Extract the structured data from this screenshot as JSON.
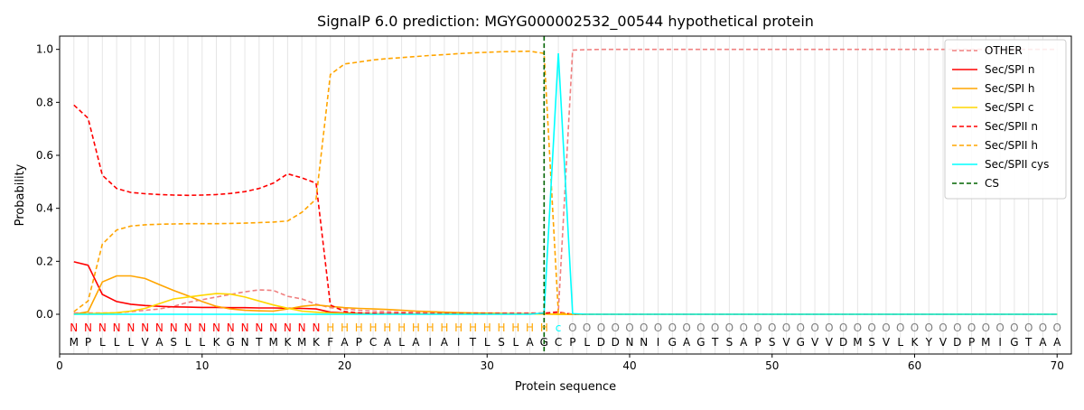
{
  "chart_data": {
    "type": "line",
    "title": "SignalP 6.0 prediction: MGYG000002532_00544 hypothetical protein",
    "xlabel": "Protein sequence",
    "ylabel": "Probability",
    "xlim": [
      0,
      71
    ],
    "ylim": [
      -0.15,
      1.05
    ],
    "xticks": [
      0,
      10,
      20,
      30,
      40,
      50,
      60,
      70
    ],
    "yticks": [
      0.0,
      0.2,
      0.4,
      0.6,
      0.8,
      1.0
    ],
    "grid": "vertical lines at every residue",
    "legend_position": "top-right",
    "sequence": [
      "M",
      "P",
      "L",
      "L",
      "L",
      "V",
      "A",
      "S",
      "L",
      "L",
      "K",
      "G",
      "N",
      "T",
      "M",
      "K",
      "M",
      "K",
      "F",
      "A",
      "P",
      "C",
      "A",
      "L",
      "A",
      "I",
      "A",
      "I",
      "T",
      "L",
      "S",
      "L",
      "A",
      "G",
      "C",
      "P",
      "L",
      "D",
      "D",
      "N",
      "N",
      "I",
      "G",
      "A",
      "G",
      "T",
      "S",
      "A",
      "P",
      "S",
      "V",
      "G",
      "V",
      "V",
      "D",
      "M",
      "S",
      "V",
      "L",
      "K",
      "Y",
      "V",
      "D",
      "P",
      "M",
      "I",
      "G",
      "T",
      "A",
      "A"
    ],
    "labels": [
      "N",
      "N",
      "N",
      "N",
      "N",
      "N",
      "N",
      "N",
      "N",
      "N",
      "N",
      "N",
      "N",
      "N",
      "N",
      "N",
      "N",
      "N",
      "H",
      "H",
      "H",
      "H",
      "H",
      "H",
      "H",
      "H",
      "H",
      "H",
      "H",
      "H",
      "H",
      "H",
      "H",
      "H",
      "c",
      "O",
      "O",
      "O",
      "O",
      "O",
      "O",
      "O",
      "O",
      "O",
      "O",
      "O",
      "O",
      "O",
      "O",
      "O",
      "O",
      "O",
      "O",
      "O",
      "O",
      "O",
      "O",
      "O",
      "O",
      "O",
      "O",
      "O",
      "O",
      "O",
      "O",
      "O",
      "O",
      "O",
      "O",
      "O"
    ],
    "label_colors": {
      "N": "#ff0000",
      "H": "#ffa500",
      "c": "#00ffff",
      "O": "#808080"
    },
    "x": [
      1,
      2,
      3,
      4,
      5,
      6,
      7,
      8,
      9,
      10,
      11,
      12,
      13,
      14,
      15,
      16,
      17,
      18,
      19,
      20,
      21,
      22,
      23,
      24,
      25,
      26,
      27,
      28,
      29,
      30,
      31,
      32,
      33,
      34,
      35,
      36,
      37,
      38,
      39,
      40,
      41,
      42,
      43,
      44,
      45,
      46,
      47,
      48,
      49,
      50,
      51,
      52,
      53,
      54,
      55,
      56,
      57,
      58,
      59,
      60,
      61,
      62,
      63,
      64,
      65,
      66,
      67,
      68,
      69,
      70
    ],
    "cs_position": 34,
    "series": [
      {
        "name": "OTHER",
        "color": "#f08080",
        "dash": "dashed",
        "values": [
          0.005,
          0.005,
          0.005,
          0.005,
          0.01,
          0.015,
          0.02,
          0.03,
          0.045,
          0.055,
          0.065,
          0.075,
          0.085,
          0.092,
          0.09,
          0.068,
          0.058,
          0.038,
          0.025,
          0.02,
          0.015,
          0.012,
          0.01,
          0.008,
          0.007,
          0.006,
          0.005,
          0.005,
          0.005,
          0.005,
          0.005,
          0.005,
          0.005,
          0.005,
          0.01,
          0.997,
          0.999,
          1.0,
          1.0,
          1.0,
          1.0,
          1.0,
          1.0,
          1.0,
          1.0,
          1.0,
          1.0,
          1.0,
          1.0,
          1.0,
          1.0,
          1.0,
          1.0,
          1.0,
          1.0,
          1.0,
          1.0,
          1.0,
          1.0,
          1.0,
          1.0,
          1.0,
          1.0,
          1.0,
          1.0,
          1.0,
          1.0,
          1.0,
          1.0,
          1.0
        ]
      },
      {
        "name": "Sec/SPI n",
        "color": "#ff0000",
        "dash": "solid",
        "values": [
          0.198,
          0.185,
          0.075,
          0.048,
          0.038,
          0.033,
          0.03,
          0.028,
          0.027,
          0.026,
          0.026,
          0.025,
          0.025,
          0.024,
          0.024,
          0.023,
          0.022,
          0.02,
          0.008,
          0.005,
          0.003,
          0.002,
          0.002,
          0.001,
          0.001,
          0.001,
          0.001,
          0.001,
          0.001,
          0.001,
          0.001,
          0.001,
          0.001,
          0.001,
          0.0,
          0.0,
          0.0,
          0.0,
          0.0,
          0.0,
          0.0,
          0.0,
          0.0,
          0.0,
          0.0,
          0.0,
          0.0,
          0.0,
          0.0,
          0.0,
          0.0,
          0.0,
          0.0,
          0.0,
          0.0,
          0.0,
          0.0,
          0.0,
          0.0,
          0.0,
          0.0,
          0.0,
          0.0,
          0.0,
          0.0,
          0.0,
          0.0,
          0.0,
          0.0,
          0.0
        ]
      },
      {
        "name": "Sec/SPI h",
        "color": "#ffa500",
        "dash": "solid",
        "values": [
          0.0,
          0.01,
          0.122,
          0.145,
          0.145,
          0.135,
          0.112,
          0.09,
          0.07,
          0.048,
          0.03,
          0.02,
          0.015,
          0.013,
          0.012,
          0.02,
          0.03,
          0.035,
          0.03,
          0.025,
          0.022,
          0.02,
          0.018,
          0.015,
          0.012,
          0.01,
          0.008,
          0.006,
          0.005,
          0.004,
          0.003,
          0.002,
          0.002,
          0.001,
          0.0,
          0.0,
          0.0,
          0.0,
          0.0,
          0.0,
          0.0,
          0.0,
          0.0,
          0.0,
          0.0,
          0.0,
          0.0,
          0.0,
          0.0,
          0.0,
          0.0,
          0.0,
          0.0,
          0.0,
          0.0,
          0.0,
          0.0,
          0.0,
          0.0,
          0.0,
          0.0,
          0.0,
          0.0,
          0.0,
          0.0,
          0.0,
          0.0,
          0.0,
          0.0,
          0.0
        ]
      },
      {
        "name": "Sec/SPI c",
        "color": "#ffd700",
        "dash": "solid",
        "values": [
          0.0,
          0.002,
          0.004,
          0.006,
          0.012,
          0.022,
          0.04,
          0.058,
          0.065,
          0.072,
          0.078,
          0.076,
          0.065,
          0.05,
          0.035,
          0.023,
          0.012,
          0.008,
          0.005,
          0.003,
          0.002,
          0.002,
          0.001,
          0.001,
          0.001,
          0.001,
          0.001,
          0.001,
          0.001,
          0.001,
          0.001,
          0.001,
          0.001,
          0.001,
          0.0,
          0.0,
          0.0,
          0.0,
          0.0,
          0.0,
          0.0,
          0.0,
          0.0,
          0.0,
          0.0,
          0.0,
          0.0,
          0.0,
          0.0,
          0.0,
          0.0,
          0.0,
          0.0,
          0.0,
          0.0,
          0.0,
          0.0,
          0.0,
          0.0,
          0.0,
          0.0,
          0.0,
          0.0,
          0.0,
          0.0,
          0.0,
          0.0,
          0.0,
          0.0,
          0.0
        ]
      },
      {
        "name": "Sec/SPII n",
        "color": "#ff0000",
        "dash": "dashed",
        "values": [
          0.79,
          0.74,
          0.525,
          0.475,
          0.46,
          0.455,
          0.452,
          0.45,
          0.449,
          0.45,
          0.452,
          0.456,
          0.463,
          0.475,
          0.495,
          0.53,
          0.515,
          0.495,
          0.035,
          0.01,
          0.005,
          0.004,
          0.003,
          0.003,
          0.002,
          0.002,
          0.002,
          0.002,
          0.002,
          0.002,
          0.002,
          0.002,
          0.002,
          0.003,
          0.008,
          0.0,
          0.0,
          0.0,
          0.0,
          0.0,
          0.0,
          0.0,
          0.0,
          0.0,
          0.0,
          0.0,
          0.0,
          0.0,
          0.0,
          0.0,
          0.0,
          0.0,
          0.0,
          0.0,
          0.0,
          0.0,
          0.0,
          0.0,
          0.0,
          0.0,
          0.0,
          0.0,
          0.0,
          0.0,
          0.0,
          0.0,
          0.0,
          0.0,
          0.0,
          0.0
        ]
      },
      {
        "name": "Sec/SPII h",
        "color": "#ffa500",
        "dash": "dashed",
        "values": [
          0.01,
          0.05,
          0.265,
          0.318,
          0.333,
          0.338,
          0.34,
          0.341,
          0.342,
          0.342,
          0.342,
          0.343,
          0.344,
          0.346,
          0.348,
          0.352,
          0.385,
          0.435,
          0.905,
          0.945,
          0.952,
          0.96,
          0.965,
          0.969,
          0.973,
          0.977,
          0.98,
          0.984,
          0.987,
          0.989,
          0.991,
          0.992,
          0.993,
          0.985,
          0.005,
          0.0,
          0.0,
          0.0,
          0.0,
          0.0,
          0.0,
          0.0,
          0.0,
          0.0,
          0.0,
          0.0,
          0.0,
          0.0,
          0.0,
          0.0,
          0.0,
          0.0,
          0.0,
          0.0,
          0.0,
          0.0,
          0.0,
          0.0,
          0.0,
          0.0,
          0.0,
          0.0,
          0.0,
          0.0,
          0.0,
          0.0,
          0.0,
          0.0,
          0.0,
          0.0
        ]
      },
      {
        "name": "Sec/SPII cys",
        "color": "#00ffff",
        "dash": "solid",
        "values": [
          0.0,
          0.0,
          0.0,
          0.0,
          0.0,
          0.0,
          0.0,
          0.0,
          0.0,
          0.0,
          0.0,
          0.0,
          0.0,
          0.0,
          0.0,
          0.0,
          0.0,
          0.0,
          0.0,
          0.0,
          0.0,
          0.0,
          0.0,
          0.0,
          0.0,
          0.0,
          0.0,
          0.0,
          0.0,
          0.0,
          0.0,
          0.0,
          0.0,
          0.005,
          0.985,
          0.002,
          0.0,
          0.0,
          0.0,
          0.0,
          0.0,
          0.0,
          0.0,
          0.0,
          0.0,
          0.0,
          0.0,
          0.0,
          0.0,
          0.0,
          0.0,
          0.0,
          0.0,
          0.0,
          0.0,
          0.0,
          0.0,
          0.0,
          0.0,
          0.0,
          0.0,
          0.0,
          0.0,
          0.0,
          0.0,
          0.0,
          0.0,
          0.0,
          0.0,
          0.0
        ]
      },
      {
        "name": "CS",
        "color": "#006400",
        "dash": "dashed",
        "vertical_at": 34
      }
    ]
  }
}
